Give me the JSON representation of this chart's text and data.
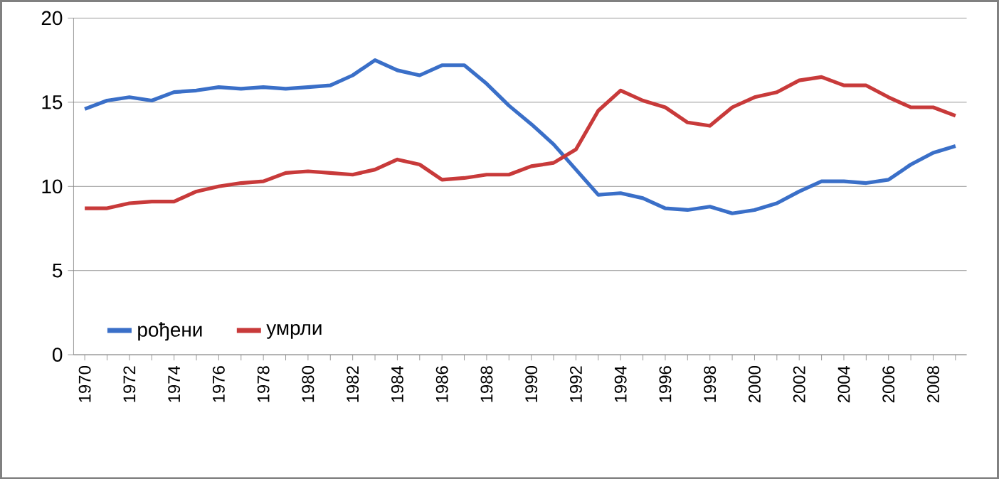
{
  "chart_data": {
    "type": "line",
    "categories": [
      "1970",
      null,
      "1972",
      null,
      "1974",
      null,
      "1976",
      null,
      "1978",
      null,
      "1980",
      null,
      "1982",
      null,
      "1984",
      null,
      "1986",
      null,
      "1988",
      null,
      "1990",
      null,
      "1992",
      null,
      "1994",
      null,
      "1996",
      null,
      "1998",
      null,
      "2000",
      null,
      "2002",
      null,
      "2004",
      null,
      "2006",
      null,
      "2008",
      null
    ],
    "series": [
      {
        "name": "рођени",
        "color": "#3a6fc8",
        "values": [
          14.6,
          15.1,
          15.3,
          15.1,
          15.6,
          15.7,
          15.9,
          15.8,
          15.9,
          15.8,
          15.9,
          16.0,
          16.6,
          17.5,
          16.9,
          16.6,
          17.2,
          17.2,
          16.1,
          14.8,
          13.7,
          12.5,
          11.0,
          9.5,
          9.6,
          9.3,
          8.7,
          8.6,
          8.8,
          8.4,
          8.6,
          9.0,
          9.7,
          10.3,
          10.3,
          10.2,
          10.4,
          11.3,
          12.0,
          12.4
        ]
      },
      {
        "name": "умрли",
        "color": "#c83a3a",
        "values": [
          8.7,
          8.7,
          9.0,
          9.1,
          9.1,
          9.7,
          10.0,
          10.2,
          10.3,
          10.8,
          10.9,
          10.8,
          10.7,
          11.0,
          11.6,
          11.3,
          10.4,
          10.5,
          10.7,
          10.7,
          11.2,
          11.4,
          12.2,
          14.5,
          15.7,
          15.1,
          14.7,
          13.8,
          13.6,
          14.7,
          15.3,
          15.6,
          16.3,
          16.5,
          16.0,
          16.0,
          15.3,
          14.7,
          14.7,
          14.2
        ]
      }
    ],
    "ylim": [
      0,
      20
    ],
    "yticks": [
      0,
      5,
      10,
      15,
      20
    ],
    "grid": "y",
    "legend": "bottom left",
    "marker": "none",
    "line_style": "solid"
  }
}
